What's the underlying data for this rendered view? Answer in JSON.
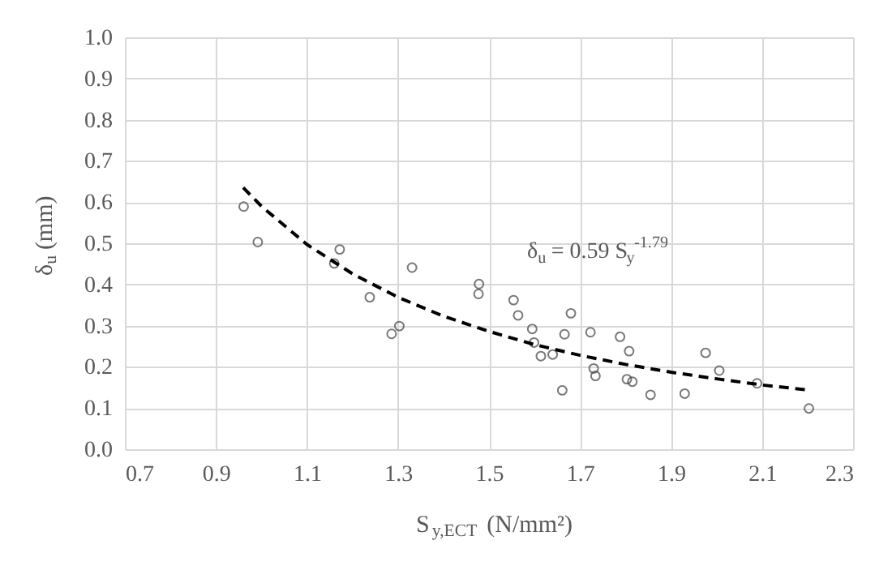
{
  "chart_data": {
    "type": "scatter",
    "xlabel": "S$_{y,ECT}$ (N/mm²)",
    "ylabel": "δ$_{u}$ (mm)",
    "xlim": [
      0.7,
      2.3
    ],
    "xticks": [
      0.7,
      0.9,
      1.1,
      1.3,
      1.5,
      1.7,
      1.9,
      2.1,
      2.3
    ],
    "ylim": [
      0,
      1
    ],
    "yticks": [
      {
        "value": 0,
        "label": "0.0"
      },
      0.1,
      0.2,
      0.3,
      0.4,
      0.5,
      0.6,
      0.7,
      0.8,
      0.9,
      {
        "value": 1,
        "label": "1.0"
      }
    ],
    "grid": true,
    "annotations": [
      "δ$_{u}$ = 0.59 S$_{y}$$^{-1.79}$"
    ],
    "series": [
      {
        "marker": "circle",
        "color": "#404040",
        "x": [
          0.961,
          0.992,
          1.16,
          1.172,
          1.238,
          1.286,
          1.303,
          1.331,
          1.478,
          1.477,
          1.554,
          1.564,
          1.595,
          1.599,
          1.614,
          1.64,
          1.661,
          1.666,
          1.68,
          1.723,
          1.73,
          1.734,
          1.788,
          1.808,
          1.803,
          1.815,
          1.855,
          1.93,
          1.976,
          2.006,
          2.089,
          2.203
        ],
        "values": [
          0.589,
          0.503,
          0.451,
          0.485,
          0.369,
          0.28,
          0.299,
          0.441,
          0.401,
          0.377,
          0.362,
          0.325,
          0.292,
          0.259,
          0.226,
          0.23,
          0.143,
          0.279,
          0.33,
          0.284,
          0.196,
          0.178,
          0.273,
          0.238,
          0.17,
          0.164,
          0.132,
          0.135,
          0.234,
          0.191,
          0.16,
          0.099
        ]
      },
      {
        "type": "line",
        "line_style": "dashed",
        "color": "#000000",
        "x": [
          0.96,
          1.0,
          1.1,
          1.2,
          1.3,
          1.4,
          1.5,
          1.6,
          1.7,
          1.8,
          1.9,
          2.0,
          2.1,
          2.2
        ],
        "values": [
          0.635,
          0.59,
          0.497,
          0.426,
          0.369,
          0.323,
          0.286,
          0.254,
          0.228,
          0.206,
          0.187,
          0.171,
          0.156,
          0.144
        ]
      }
    ]
  }
}
